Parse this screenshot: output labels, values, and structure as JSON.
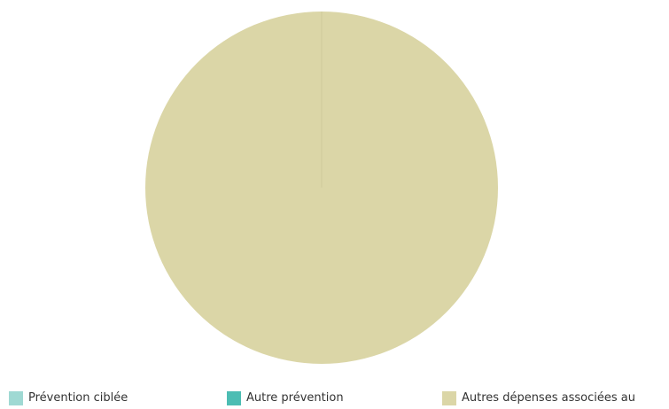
{
  "chart_data": {
    "type": "pie",
    "categories": [
      "Prévention ciblée",
      "Autre prévention",
      "Autres dépenses associées au"
    ],
    "values": [
      0,
      0,
      100
    ],
    "colors": [
      "#9fd9d3",
      "#4cbdb3",
      "#dbd6a7"
    ],
    "title": "",
    "legend_position": "bottom"
  },
  "legend": {
    "items": [
      {
        "label": "Prévention ciblée",
        "color": "#9fd9d3"
      },
      {
        "label": "Autre prévention",
        "color": "#4cbdb3"
      },
      {
        "label": "Autres dépenses associées au",
        "color": "#dbd6a7"
      }
    ]
  }
}
